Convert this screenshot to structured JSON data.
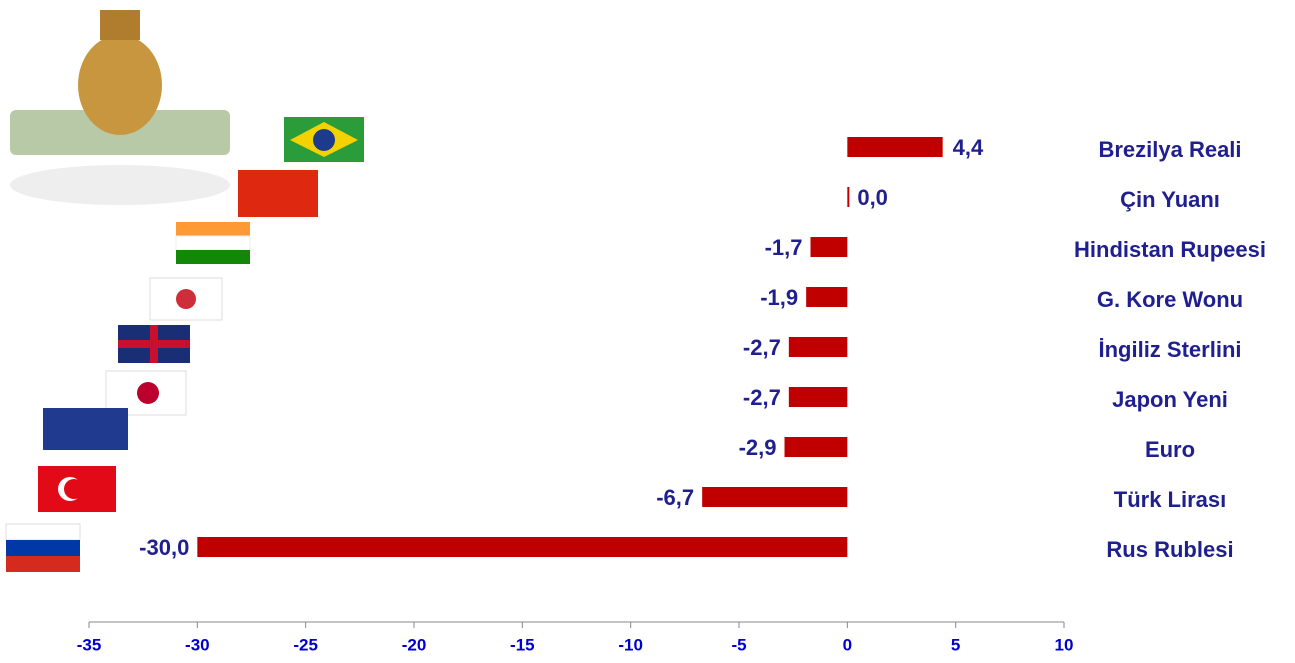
{
  "chart_data": {
    "type": "barh",
    "categories": [
      "Brezilya Reali",
      "Çin Yuanı",
      "Hindistan Rupeesi",
      "G. Kore Wonu",
      "İngiliz Sterlini",
      "Japon Yeni",
      "Euro",
      "Türk Lirası",
      "Rus Rublesi"
    ],
    "values": [
      4.4,
      0.0,
      -1.7,
      -1.9,
      -2.7,
      -2.7,
      -2.9,
      -6.7,
      -30.0
    ],
    "value_labels": [
      "4,4",
      "0,0",
      "-1,7",
      "-1,9",
      "-2,7",
      "-2,7",
      "-2,9",
      "-6,7",
      "-30,0"
    ],
    "color": "#c00000",
    "xlim": [
      -35,
      10
    ],
    "xticks": [
      -35,
      -30,
      -25,
      -20,
      -15,
      -10,
      -5,
      0,
      5,
      10
    ],
    "grid": false
  }
}
